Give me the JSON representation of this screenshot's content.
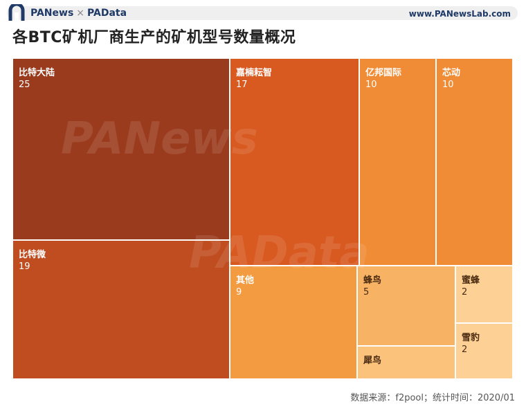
{
  "header": {
    "brand_left": "PANews",
    "brand_sep": "×",
    "brand_right": "PAData",
    "site_url": "www.PANewsLab.com"
  },
  "chart_data": {
    "type": "treemap",
    "title": "各BTC矿机厂商生产的矿机型号数量概况",
    "items": [
      {
        "name": "比特大陆",
        "value": 25,
        "color": "#9b3b1e"
      },
      {
        "name": "比特微",
        "value": 19,
        "color": "#c04d1f"
      },
      {
        "name": "嘉楠耘智",
        "value": 17,
        "color": "#d85a21"
      },
      {
        "name": "亿邦国际",
        "value": 10,
        "color": "#f08c35"
      },
      {
        "name": "芯动",
        "value": 10,
        "color": "#f08c35"
      },
      {
        "name": "其他",
        "value": 9,
        "color": "#f29b41"
      },
      {
        "name": "蜂鸟",
        "value": 5,
        "color": "#f7b264"
      },
      {
        "name": "犀鸟",
        "value": 2,
        "color": "#fbc27c"
      },
      {
        "name": "蜜蜂",
        "value": 2,
        "color": "#fdd196"
      },
      {
        "name": "雪豹",
        "value": 2,
        "color": "#fdd196"
      }
    ]
  },
  "watermarks": [
    "PANews",
    "PAData"
  ],
  "footer": {
    "source": "数据来源：f2pool；统计时间：2020/01"
  }
}
